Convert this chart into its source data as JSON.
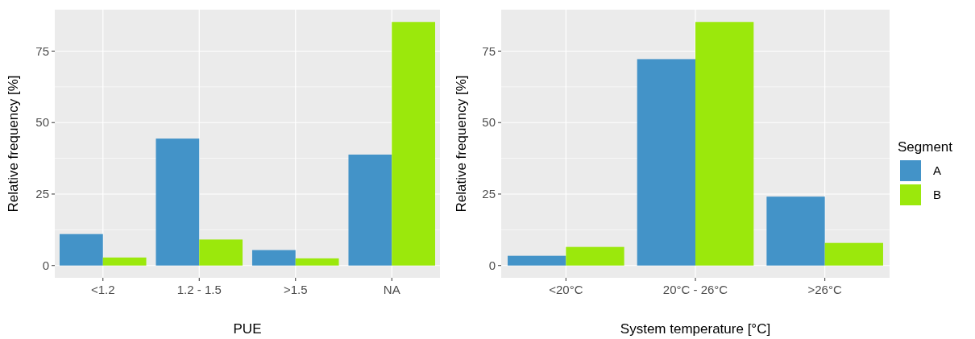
{
  "chart_data": [
    {
      "type": "bar",
      "xlabel": "PUE",
      "ylabel": "Relative frequency [%]",
      "categories": [
        "<1.2",
        "1.2 - 1.5",
        ">1.5",
        "NA"
      ],
      "series": [
        {
          "color": "#4393c8",
          "values": [
            11.0,
            44.4,
            5.4,
            38.8
          ]
        },
        {
          "color": "#9be80c",
          "values": [
            2.8,
            9.1,
            2.5,
            85.2
          ]
        }
      ],
      "ylim": [
        -4.3,
        89.5
      ],
      "yticks": [
        0,
        25,
        50,
        75
      ],
      "grid": true,
      "legend": false
    },
    {
      "type": "bar",
      "xlabel": "System temperature [°C]",
      "ylabel": "Relative frequency [%]",
      "categories": [
        "<20°C",
        "20°C - 26°C",
        ">26°C"
      ],
      "series": [
        {
          "name": "A",
          "color": "#4393c8",
          "values": [
            3.4,
            72.2,
            24.1
          ]
        },
        {
          "name": "B",
          "color": "#9be80c",
          "values": [
            6.5,
            85.2,
            7.9
          ]
        }
      ],
      "ylim": [
        -4.3,
        89.5
      ],
      "yticks": [
        0,
        25,
        50,
        75
      ],
      "grid": true,
      "legend": "right",
      "legend_title": "Segment"
    }
  ]
}
